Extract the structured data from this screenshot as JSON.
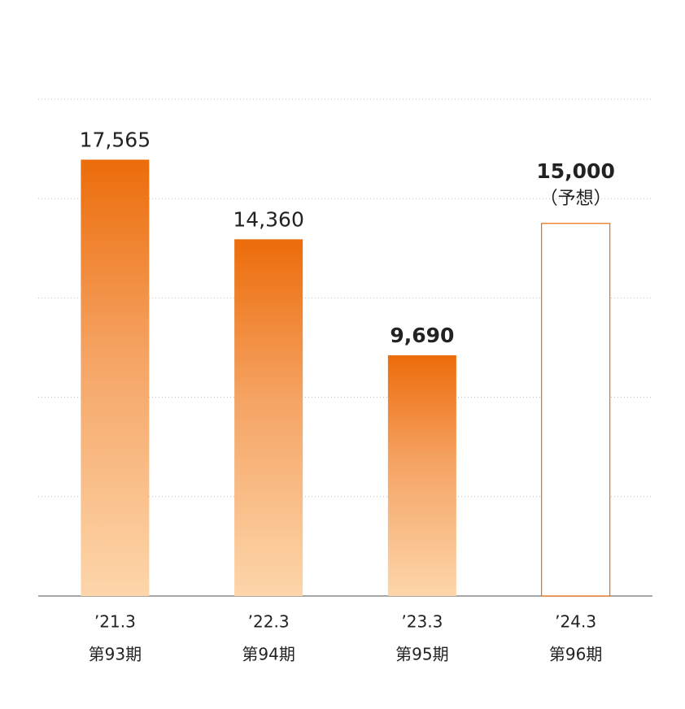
{
  "chart_data": {
    "type": "bar",
    "categories": [
      "’21.3",
      "’22.3",
      "’23.3",
      "’24.3"
    ],
    "periods": [
      "第93期",
      "第94期",
      "第95期",
      "第96期"
    ],
    "values": [
      17565,
      14360,
      9690,
      15000
    ],
    "value_labels": [
      "17,565",
      "14,360",
      "9,690",
      "15,000"
    ],
    "bold_labels": [
      false,
      false,
      true,
      true
    ],
    "outlined": [
      false,
      false,
      false,
      true
    ],
    "annotation": "（予想）",
    "color": "#ec6c0a",
    "ylim": [
      0,
      20000
    ],
    "yticks": [
      0,
      4000,
      8000,
      12000,
      16000,
      20000
    ],
    "grid": true
  }
}
